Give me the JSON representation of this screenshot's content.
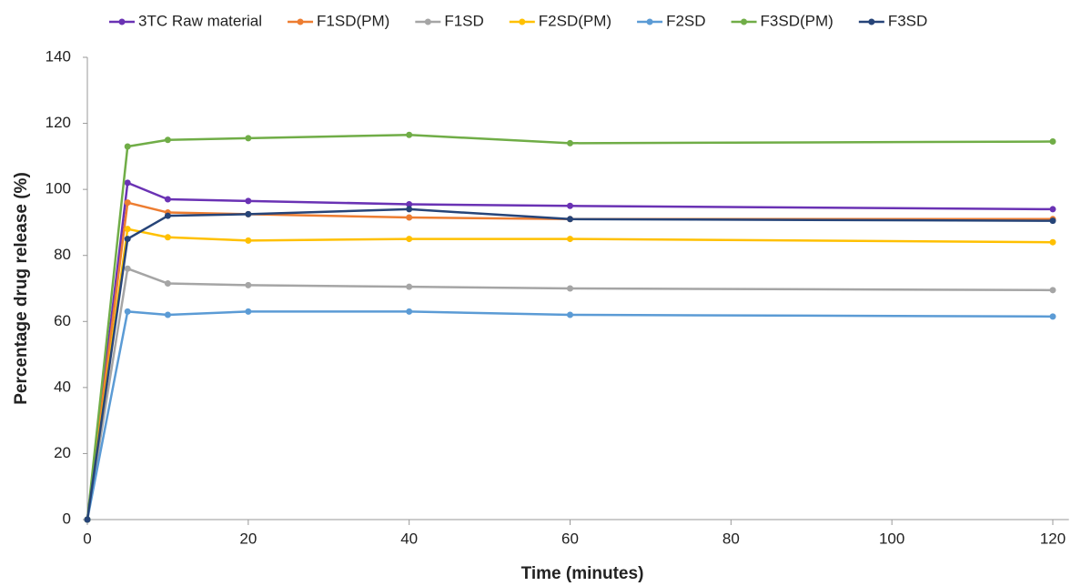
{
  "chart_data": {
    "type": "line",
    "x_label": "Time (minutes)",
    "y_label": "Percentage drug release (%)",
    "x": [
      0,
      5,
      10,
      20,
      40,
      60,
      120
    ],
    "series": [
      {
        "name": "3TC Raw material",
        "color": "#6a32b4",
        "values": [
          0,
          102,
          97,
          96.5,
          95.5,
          95,
          94
        ]
      },
      {
        "name": "F1SD(PM)",
        "color": "#ed7d31",
        "values": [
          0,
          96,
          93,
          92.5,
          91.5,
          91,
          91
        ]
      },
      {
        "name": "F1SD",
        "color": "#a5a5a5",
        "values": [
          0,
          76,
          71.5,
          71,
          70.5,
          70,
          69.5
        ]
      },
      {
        "name": "F2SD(PM)",
        "color": "#ffc000",
        "values": [
          0,
          88,
          85.5,
          84.5,
          85,
          85,
          84
        ]
      },
      {
        "name": "F2SD",
        "color": "#5b9bd5",
        "values": [
          0,
          63,
          62,
          63,
          63,
          62,
          61.5
        ]
      },
      {
        "name": "F3SD(PM)",
        "color": "#70ad47",
        "values": [
          0,
          113,
          115,
          115.5,
          116.5,
          114,
          114.5
        ]
      },
      {
        "name": "F3SD",
        "color": "#264478",
        "values": [
          0,
          85,
          92,
          92.5,
          94,
          91,
          90.5
        ]
      }
    ],
    "xlim": [
      0,
      122
    ],
    "xticks": [
      0,
      20,
      40,
      60,
      80,
      100,
      120
    ],
    "ylim": [
      0,
      140
    ],
    "yticks": [
      0,
      20,
      40,
      60,
      80,
      100,
      120,
      140
    ],
    "grid": false,
    "legend": "top"
  }
}
